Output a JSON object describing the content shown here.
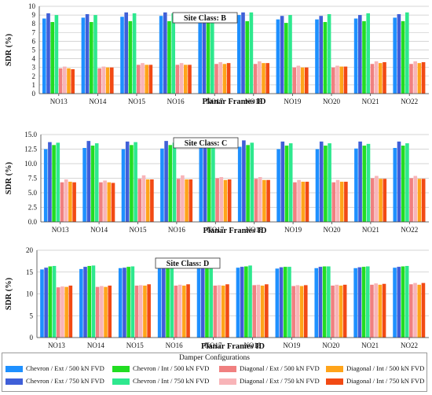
{
  "charts": [
    {
      "type": "bar",
      "site_label": "Site Class: B",
      "ylabel": "SDR (%)",
      "xlabel": "Planar Frames ID",
      "ylim": [
        0,
        10
      ],
      "yticks": [
        "0",
        "1",
        "2",
        "3",
        "4",
        "5",
        "6",
        "7",
        "8",
        "9",
        "10"
      ],
      "categories": [
        "NO13",
        "NO14",
        "NO15",
        "NO16",
        "NO17",
        "NO18",
        "NO19",
        "NO20",
        "NO21",
        "NO22"
      ],
      "values": [
        [
          8.6,
          9.2,
          8.2,
          9.0,
          2.9,
          3.1,
          2.9,
          2.8
        ],
        [
          8.7,
          9.1,
          8.2,
          9.0,
          2.9,
          3.1,
          3.0,
          3.0
        ],
        [
          8.8,
          9.3,
          8.3,
          9.2,
          3.3,
          3.5,
          3.3,
          3.3
        ],
        [
          8.9,
          9.3,
          8.3,
          9.2,
          3.3,
          3.5,
          3.3,
          3.3
        ],
        [
          8.9,
          9.3,
          8.3,
          9.2,
          3.4,
          3.6,
          3.4,
          3.5
        ],
        [
          9.0,
          9.3,
          8.3,
          9.3,
          3.4,
          3.7,
          3.5,
          3.5
        ],
        [
          8.5,
          8.9,
          8.1,
          9.0,
          3.0,
          3.2,
          3.0,
          3.0
        ],
        [
          8.5,
          8.9,
          8.2,
          9.1,
          3.0,
          3.2,
          3.1,
          3.1
        ],
        [
          8.6,
          9.0,
          8.3,
          9.2,
          3.4,
          3.7,
          3.5,
          3.6
        ],
        [
          8.7,
          9.1,
          8.3,
          9.3,
          3.4,
          3.7,
          3.5,
          3.6
        ]
      ]
    },
    {
      "type": "bar",
      "site_label": "Site Class: C",
      "ylabel": "SDR (%)",
      "xlabel": "Planar Frames ID",
      "ylim": [
        0,
        15
      ],
      "yticks": [
        "0.0",
        "2.5",
        "5.0",
        "7.5",
        "10.0",
        "12.5",
        "15.0"
      ],
      "categories": [
        "NO13",
        "NO14",
        "NO15",
        "NO16",
        "NO17",
        "NO18",
        "NO19",
        "NO20",
        "NO21",
        "NO22"
      ],
      "values": [
        [
          12.5,
          13.7,
          13.2,
          13.6,
          6.8,
          7.3,
          6.9,
          6.8
        ],
        [
          12.7,
          13.9,
          13.1,
          13.5,
          6.8,
          7.1,
          6.8,
          6.7
        ],
        [
          12.5,
          13.8,
          13.2,
          13.7,
          7.4,
          8.0,
          7.3,
          7.3
        ],
        [
          12.6,
          13.9,
          13.2,
          13.6,
          7.4,
          8.0,
          7.3,
          7.3
        ],
        [
          12.8,
          14.0,
          13.2,
          13.6,
          7.5,
          7.7,
          7.2,
          7.3
        ],
        [
          12.9,
          14.0,
          13.2,
          13.6,
          7.4,
          7.7,
          7.2,
          7.2
        ],
        [
          12.5,
          13.8,
          13.1,
          13.5,
          6.8,
          7.2,
          6.9,
          6.9
        ],
        [
          12.5,
          13.8,
          13.1,
          13.5,
          6.8,
          7.2,
          6.9,
          6.9
        ],
        [
          12.6,
          13.8,
          13.1,
          13.4,
          7.5,
          7.9,
          7.4,
          7.4
        ],
        [
          12.7,
          13.8,
          13.1,
          13.5,
          7.5,
          7.9,
          7.4,
          7.4
        ]
      ]
    },
    {
      "type": "bar",
      "site_label": "Site Class: D",
      "ylabel": "SDR (%)",
      "xlabel": "Planar Frames ID",
      "ylim": [
        0,
        20
      ],
      "yticks": [
        "0",
        "5",
        "10",
        "15",
        "20"
      ],
      "categories": [
        "NO13",
        "NO14",
        "NO15",
        "NO16",
        "NO17",
        "NO18",
        "NO19",
        "NO20",
        "NO21",
        "NO22"
      ],
      "values": [
        [
          15.6,
          16.0,
          16.3,
          16.4,
          11.5,
          11.7,
          11.6,
          11.9
        ],
        [
          15.7,
          16.2,
          16.4,
          16.5,
          11.6,
          11.8,
          11.6,
          11.9
        ],
        [
          15.9,
          16.0,
          16.2,
          16.3,
          11.9,
          12.0,
          11.9,
          12.2
        ],
        [
          15.9,
          16.0,
          16.1,
          16.2,
          11.9,
          12.1,
          11.9,
          12.2
        ],
        [
          16.0,
          16.2,
          16.4,
          16.5,
          11.9,
          12.0,
          11.9,
          12.2
        ],
        [
          16.0,
          16.2,
          16.3,
          16.5,
          12.0,
          12.1,
          11.9,
          12.2
        ],
        [
          15.8,
          16.1,
          16.2,
          16.2,
          11.8,
          12.0,
          11.8,
          12.0
        ],
        [
          15.9,
          16.2,
          16.3,
          16.3,
          11.9,
          12.1,
          11.9,
          12.1
        ],
        [
          15.9,
          16.1,
          16.2,
          16.3,
          12.1,
          12.4,
          12.1,
          12.3
        ],
        [
          16.0,
          16.2,
          16.3,
          16.4,
          12.2,
          12.5,
          12.1,
          12.5
        ]
      ]
    }
  ],
  "legend": {
    "title": "Damper Configurations",
    "items": [
      {
        "label": "Chevron / Ext / 500 kN FVD",
        "color": "#1E90FF"
      },
      {
        "label": "Chevron / Ext / 750 kN FVD",
        "color": "#3F5FD8"
      },
      {
        "label": "Chevron / Int / 500 kN FVD",
        "color": "#22DD22"
      },
      {
        "label": "Chevron / Int / 750 kN FVD",
        "color": "#2EE88E"
      },
      {
        "label": "Diagonal / Ext / 500 kN FVD",
        "color": "#F08080"
      },
      {
        "label": "Diagonal / Ext / 750 kN FVD",
        "color": "#F8B4B8"
      },
      {
        "label": "Diagonal / Int / 500 kN FVD",
        "color": "#FFA41A"
      },
      {
        "label": "Diagonal / Int / 750 kN FVD",
        "color": "#F24A14"
      }
    ]
  }
}
